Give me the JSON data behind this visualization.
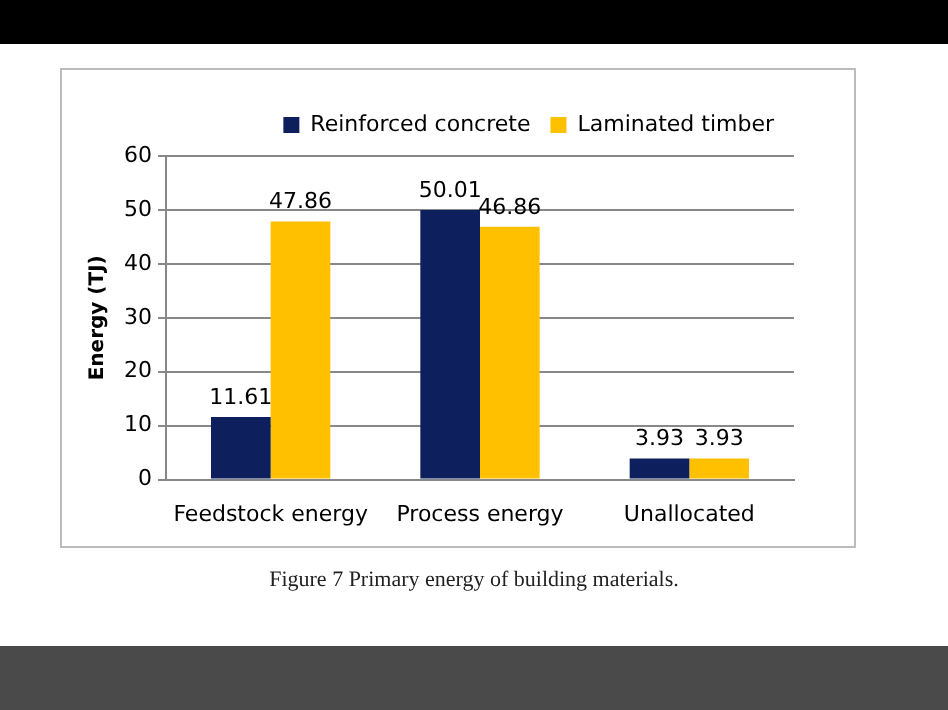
{
  "chart_data": {
    "type": "bar",
    "ylabel": "Energy (TJ)",
    "categories": [
      "Feedstock energy",
      "Process energy",
      "Unallocated"
    ],
    "series": [
      {
        "name": "Reinforced concrete",
        "color": "#0d1f5c",
        "values": [
          11.61,
          50.01,
          3.93
        ]
      },
      {
        "name": "Laminated timber",
        "color": "#ffc000",
        "values": [
          47.86,
          46.86,
          3.93
        ]
      }
    ],
    "ylim": [
      0,
      60
    ],
    "yticks": [
      0,
      10,
      20,
      30,
      40,
      50,
      60
    ],
    "grid": "y",
    "legend": "top right",
    "data_labels": true,
    "annotations": [
      "Figure 7 Primary energy of building materials."
    ]
  }
}
